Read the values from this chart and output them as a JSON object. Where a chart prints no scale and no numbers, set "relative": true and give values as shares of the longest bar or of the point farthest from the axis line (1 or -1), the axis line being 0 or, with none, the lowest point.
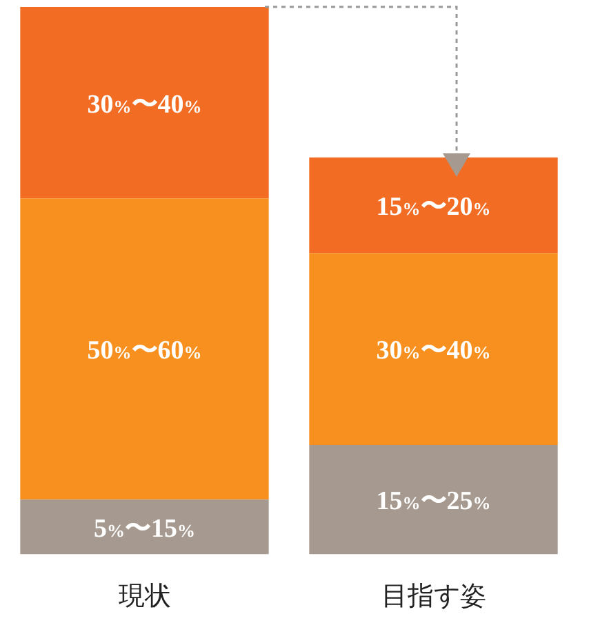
{
  "chart_data": {
    "type": "bar",
    "stacked": true,
    "relative": true,
    "categories": [
      "現状",
      "目指す姿"
    ],
    "series": [
      {
        "color": "#a69a90",
        "values": [
          0.1,
          0.2
        ]
      },
      {
        "color": "#f7901e",
        "values": [
          0.55,
          0.35
        ]
      },
      {
        "color": "#f26c23",
        "values": [
          0.35,
          0.175
        ]
      }
    ],
    "annotations": [
      "5%〜15%",
      "50%〜60%",
      "30%〜40%",
      "15%〜25%",
      "30%〜40%",
      "15%〜20%"
    ]
  }
}
